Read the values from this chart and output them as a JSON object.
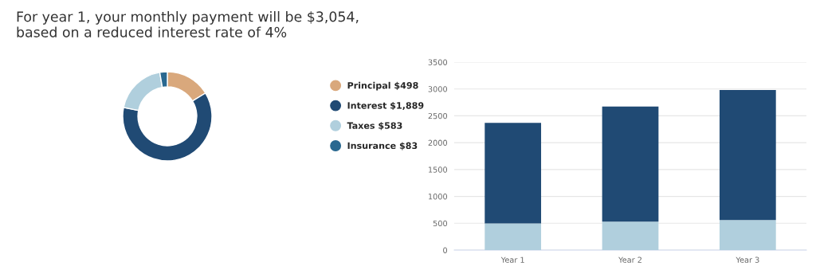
{
  "chart_data": [
    {
      "type": "donut",
      "title": "For year 1, your monthly payment will be $3,054,\nbased on a reduced interest rate of 4%",
      "categories": [
        "Principal $498",
        "Interest $1,889",
        "Taxes $583",
        "Insurance $83"
      ],
      "values": [
        498,
        1889,
        583,
        83
      ],
      "colors": [
        "#d9a87c",
        "#204a74",
        "#b0cfdd",
        "#2a6890"
      ],
      "legend": "right"
    },
    {
      "type": "bar",
      "stacked": true,
      "categories": [
        "Year 1",
        "Year 2",
        "Year 3"
      ],
      "series": [
        {
          "color": "#b0cfdd",
          "values": [
            495,
            530,
            560
          ]
        },
        {
          "color": "#204a74",
          "values": [
            1875,
            2145,
            2420
          ]
        }
      ],
      "ylim": [
        0,
        3500
      ],
      "yticks": [
        0,
        500,
        1000,
        1500,
        2000,
        2500,
        3000,
        3500
      ],
      "grid": "y"
    }
  ]
}
